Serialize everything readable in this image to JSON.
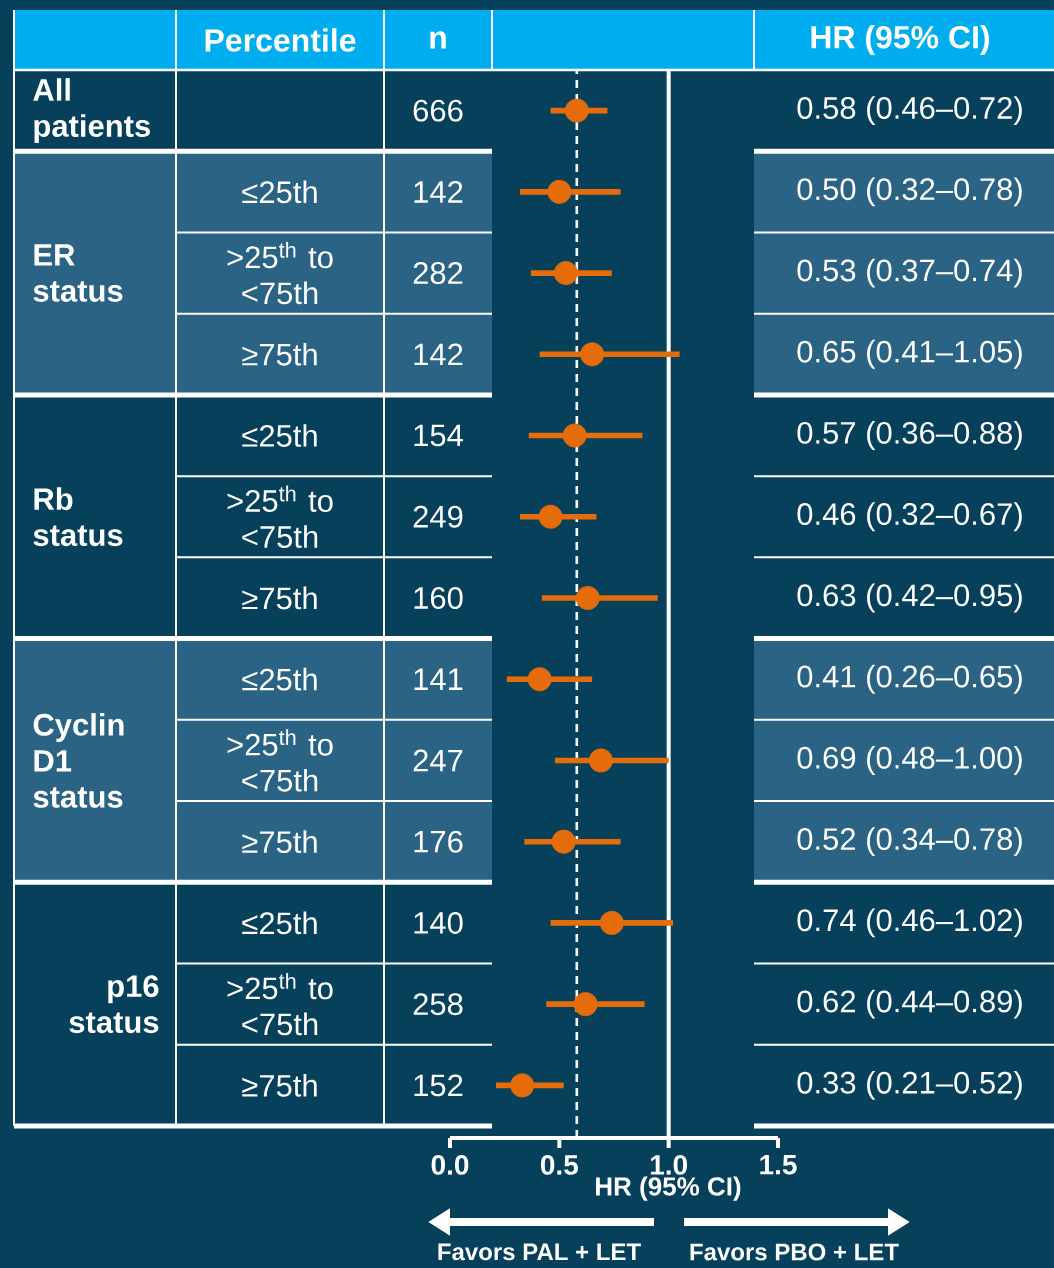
{
  "chart_data": {
    "type": "scatter",
    "orientation": "horizontal",
    "xlabel": "HR (95% CI)",
    "categories": [
      null,
      "≤25th",
      ">25$^{th}$ to <75th",
      "≥75th",
      "≤25th",
      ">25$^{th}$ to <75th",
      "≥75th",
      "≤25th",
      ">25$^{th}$ to <75th",
      "≥75th",
      "≤25th",
      ">25$^{th}$ to <75th",
      "≥75th"
    ],
    "values": [
      0.58,
      0.5,
      0.53,
      0.65,
      0.57,
      0.46,
      0.63,
      0.41,
      0.69,
      0.52,
      0.74,
      0.62,
      0.33
    ],
    "errors": [
      [
        0.46,
        0.72
      ],
      [
        0.32,
        0.78
      ],
      [
        0.37,
        0.74
      ],
      [
        0.41,
        1.05
      ],
      [
        0.36,
        0.88
      ],
      [
        0.32,
        0.67
      ],
      [
        0.42,
        0.95
      ],
      [
        0.26,
        0.65
      ],
      [
        0.48,
        1.0
      ],
      [
        0.34,
        0.78
      ],
      [
        0.46,
        1.02
      ],
      [
        0.44,
        0.89
      ],
      [
        0.21,
        0.52
      ]
    ],
    "value_labels": [
      "0.58 (0.46–0.72)",
      "0.50 (0.32–0.78)",
      "0.53 (0.37–0.74)",
      "0.65 (0.41–1.05)",
      "0.57 (0.36–0.88)",
      "0.46 (0.32–0.67)",
      "0.63 (0.42–0.95)",
      "0.41 (0.26–0.65)",
      "0.69 (0.48–1.00)",
      "0.52 (0.34–0.78)",
      "0.74 (0.46–1.02)",
      "0.62 (0.44–0.89)",
      "0.33 (0.21–0.52)"
    ],
    "color": "#e46c0a",
    "marker": "circle",
    "xlim": [
      0,
      1.5
    ],
    "xticks": [
      {
        "value": 0,
        "label": "0.0"
      },
      0.5,
      {
        "value": 1,
        "label": "1.0"
      },
      1.5
    ],
    "ref_lines": [
      {
        "axis": "x",
        "value": 0.58,
        "color": "#ffffff",
        "line_style": "dashed"
      },
      {
        "axis": "x",
        "value": 1,
        "color": "#ffffff",
        "line_style": "solid"
      }
    ],
    "annotations": [
      "Percentile",
      "n",
      "HR (95% CI)",
      "All patients",
      "ER status",
      "Rb status",
      "Cyclin D1 status",
      "p16 status",
      "666",
      "142",
      "282",
      "142",
      "154",
      "249",
      "160",
      "141",
      "247",
      "176",
      "140",
      "258",
      "152",
      "Favors PAL + LET",
      "Favors PBO + LET"
    ]
  }
}
